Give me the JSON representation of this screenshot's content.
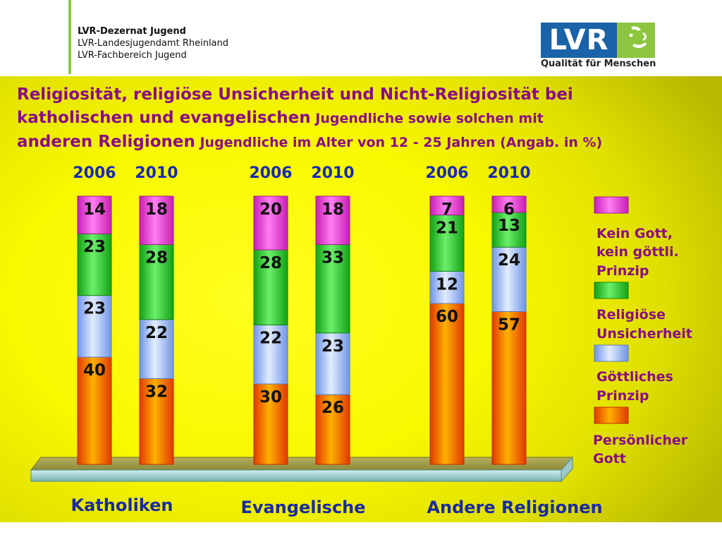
{
  "header": {
    "org_line1": "LVR-Dezernat Jugend",
    "org_line2": "LVR-Landesjugendamt Rheinland",
    "org_line3": "LVR-Fachbereich Jugend",
    "logo_text": "LVR",
    "logo_tagline": "Qualität für Menschen"
  },
  "title": {
    "line1": "Religiosität, religiöse Unsicherheit und Nicht-Religiosität bei",
    "line2a": "katholischen und evangelischen",
    "line2b": " Jugendliche sowie solchen mit",
    "line3a": "anderen Religionen",
    "line3b": " Jugendliche im Alter von 12 - 25 Jahren (Angab. in %)"
  },
  "colors": {
    "persoenlicher_gott": "#ff7b00",
    "goettliches_prinzip": "#a8c8ff",
    "religioese_unsicherheit": "#3cd23c",
    "kein_gott": "#ee45d4",
    "title": "#8a0c84",
    "years": "#1a2ab0",
    "groups": "#1a2aa0"
  },
  "chart_data": {
    "type": "bar",
    "stacked": true,
    "unit": "%",
    "groups": [
      {
        "name": "Katholiken",
        "years": [
          "2006",
          "2010"
        ]
      },
      {
        "name": "Evangelische",
        "years": [
          "2006",
          "2010"
        ]
      },
      {
        "name": "Andere Religionen",
        "years": [
          "2006",
          "2010"
        ]
      }
    ],
    "categories": [
      "Katholiken 2006",
      "Katholiken 2010",
      "Evangelische 2006",
      "Evangelische 2010",
      "Andere Religionen 2006",
      "Andere Religionen 2010"
    ],
    "series": [
      {
        "name": "Persönlicher Gott",
        "values": [
          40,
          32,
          30,
          26,
          60,
          57
        ]
      },
      {
        "name": "Göttliches Prinzip",
        "values": [
          23,
          22,
          22,
          23,
          12,
          24
        ]
      },
      {
        "name": "Religiöse Unsicherheit",
        "values": [
          23,
          28,
          28,
          33,
          21,
          13
        ]
      },
      {
        "name": "Kein Gott, kein göttli. Prinzip",
        "values": [
          14,
          18,
          20,
          18,
          7,
          6
        ]
      }
    ],
    "legend": [
      {
        "line1": "Kein Gott,",
        "line2": "kein göttli.",
        "line3": "Prinzip"
      },
      {
        "line1": "Religiöse",
        "line2": "Unsicherheit"
      },
      {
        "line1": "Göttliches",
        "line2": "Prinzip"
      },
      {
        "line1": "Persönlicher",
        "line2": "Gott"
      }
    ],
    "legend_position": "right",
    "ylim": [
      0,
      100
    ]
  }
}
